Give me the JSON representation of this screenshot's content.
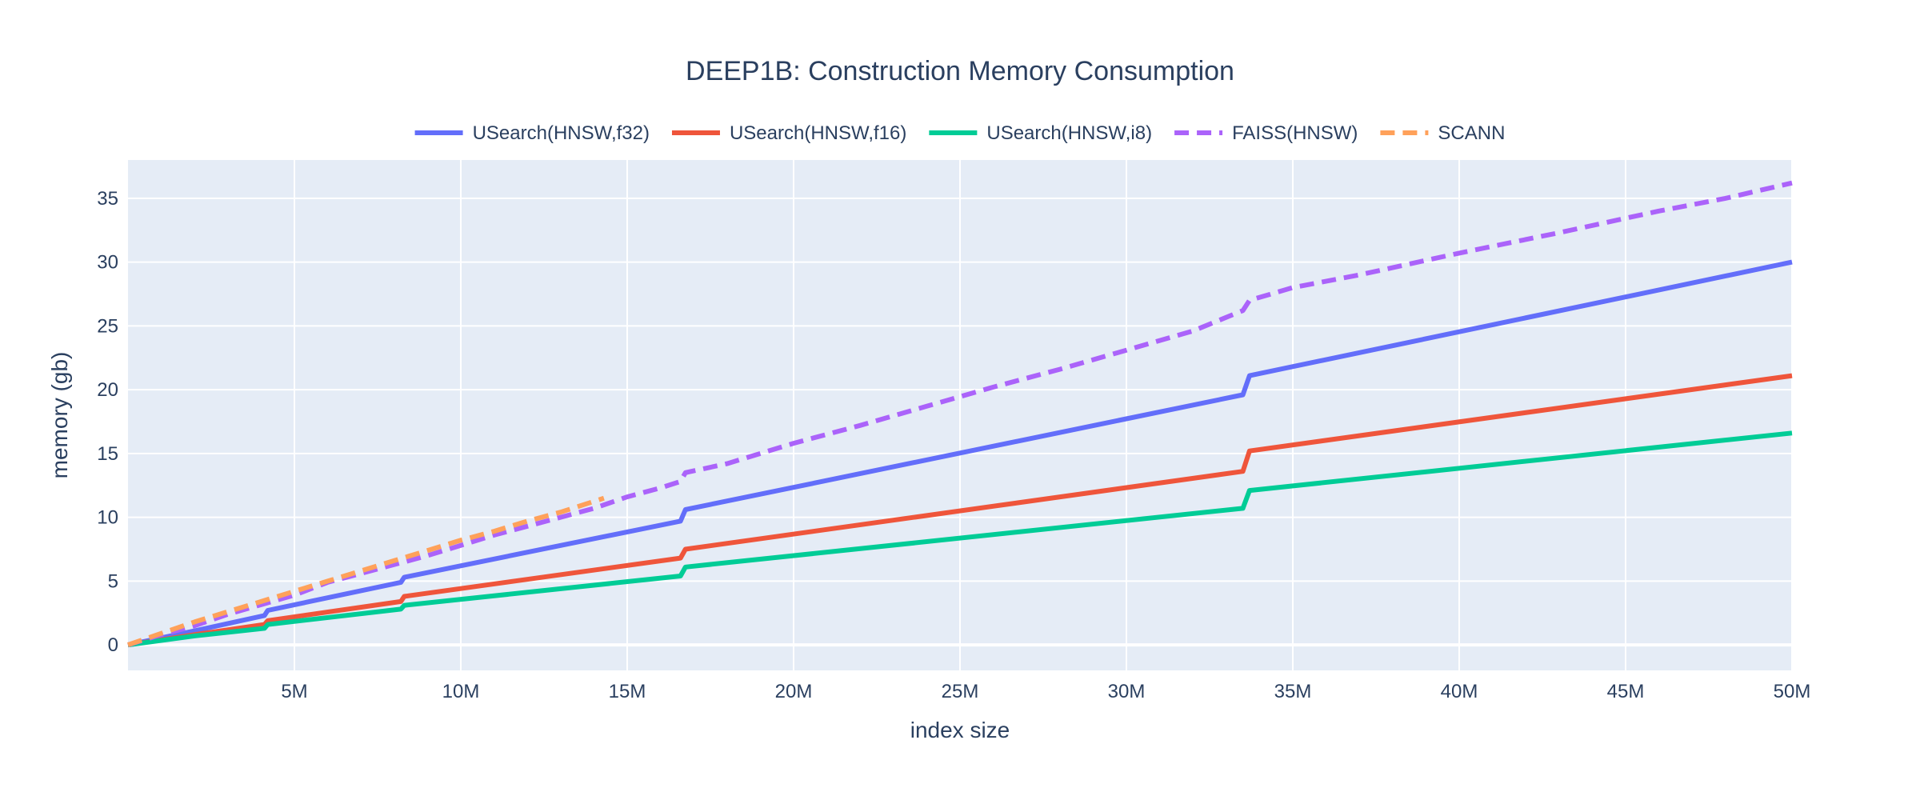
{
  "chart_data": {
    "type": "line",
    "title": "DEEP1B: Construction Memory Consumption",
    "xlabel": "index size",
    "ylabel": "memory (gb)",
    "xlim": [
      0,
      50000000
    ],
    "ylim": [
      -2,
      38
    ],
    "x_ticks": [
      5000000,
      10000000,
      15000000,
      20000000,
      25000000,
      30000000,
      35000000,
      40000000,
      45000000,
      50000000
    ],
    "x_tick_labels": [
      "5M",
      "10M",
      "15M",
      "20M",
      "25M",
      "30M",
      "35M",
      "40M",
      "45M",
      "50M"
    ],
    "y_ticks": [
      0,
      5,
      10,
      15,
      20,
      25,
      30,
      35
    ],
    "y_tick_labels": [
      "0",
      "5",
      "10",
      "15",
      "20",
      "25",
      "30",
      "35"
    ],
    "grid": true,
    "legend_position": "top-center",
    "background": "#e5ecf6",
    "series": [
      {
        "name": "USearch(HNSW,f32)",
        "color": "#636efa",
        "dash": "solid",
        "points": [
          [
            0,
            0
          ],
          [
            2000000,
            1.1
          ],
          [
            4100000,
            2.3
          ],
          [
            4200000,
            2.7
          ],
          [
            8200000,
            4.9
          ],
          [
            8300000,
            5.3
          ],
          [
            16600000,
            9.7
          ],
          [
            16750000,
            10.6
          ],
          [
            33500000,
            19.6
          ],
          [
            33700000,
            21.1
          ],
          [
            50000000,
            30
          ]
        ]
      },
      {
        "name": "USearch(HNSW,f16)",
        "color": "#ef553b",
        "dash": "solid",
        "points": [
          [
            0,
            0
          ],
          [
            2000000,
            0.8
          ],
          [
            4100000,
            1.6
          ],
          [
            4200000,
            1.9
          ],
          [
            8200000,
            3.4
          ],
          [
            8300000,
            3.8
          ],
          [
            16600000,
            6.8
          ],
          [
            16750000,
            7.5
          ],
          [
            33500000,
            13.6
          ],
          [
            33700000,
            15.2
          ],
          [
            50000000,
            21.1
          ]
        ]
      },
      {
        "name": "USearch(HNSW,i8)",
        "color": "#00cc96",
        "dash": "solid",
        "points": [
          [
            0,
            0
          ],
          [
            2000000,
            0.7
          ],
          [
            4100000,
            1.3
          ],
          [
            4200000,
            1.6
          ],
          [
            8200000,
            2.8
          ],
          [
            8300000,
            3.1
          ],
          [
            16600000,
            5.4
          ],
          [
            16750000,
            6.1
          ],
          [
            33500000,
            10.7
          ],
          [
            33700000,
            12.1
          ],
          [
            50000000,
            16.6
          ]
        ]
      },
      {
        "name": "FAISS(HNSW)",
        "color": "#ab63fa",
        "dash": "dash",
        "points": [
          [
            0,
            0
          ],
          [
            1000000,
            0.8
          ],
          [
            2000000,
            1.5
          ],
          [
            3000000,
            2.4
          ],
          [
            4200000,
            3.3
          ],
          [
            5000000,
            3.9
          ],
          [
            6000000,
            4.9
          ],
          [
            7000000,
            5.6
          ],
          [
            8300000,
            6.5
          ],
          [
            9000000,
            7
          ],
          [
            10000000,
            7.8
          ],
          [
            11000000,
            8.6
          ],
          [
            12000000,
            9.3
          ],
          [
            13000000,
            10
          ],
          [
            14000000,
            10.7
          ],
          [
            15000000,
            11.6
          ],
          [
            16000000,
            12.3
          ],
          [
            16600000,
            12.8
          ],
          [
            16750000,
            13.5
          ],
          [
            18000000,
            14.2
          ],
          [
            20000000,
            15.8
          ],
          [
            22000000,
            17.2
          ],
          [
            24000000,
            18.7
          ],
          [
            26000000,
            20.2
          ],
          [
            28000000,
            21.6
          ],
          [
            30000000,
            23.1
          ],
          [
            32000000,
            24.6
          ],
          [
            33500000,
            26.2
          ],
          [
            33700000,
            27
          ],
          [
            35000000,
            28
          ],
          [
            37000000,
            29
          ],
          [
            40000000,
            30.7
          ],
          [
            43000000,
            32.3
          ],
          [
            46000000,
            34
          ],
          [
            48000000,
            35
          ],
          [
            50000000,
            36.2
          ]
        ]
      },
      {
        "name": "SCANN",
        "color": "#ffa15a",
        "dash": "dash",
        "points": [
          [
            0,
            0
          ],
          [
            1000000,
            0.9
          ],
          [
            2000000,
            1.8
          ],
          [
            3000000,
            2.6
          ],
          [
            4000000,
            3.4
          ],
          [
            5000000,
            4.2
          ],
          [
            6000000,
            5
          ],
          [
            7000000,
            5.8
          ],
          [
            8000000,
            6.6
          ],
          [
            9000000,
            7.4
          ],
          [
            10000000,
            8.2
          ],
          [
            11000000,
            8.9
          ],
          [
            12000000,
            9.7
          ],
          [
            13000000,
            10.4
          ],
          [
            14300000,
            11.5
          ]
        ]
      }
    ]
  }
}
